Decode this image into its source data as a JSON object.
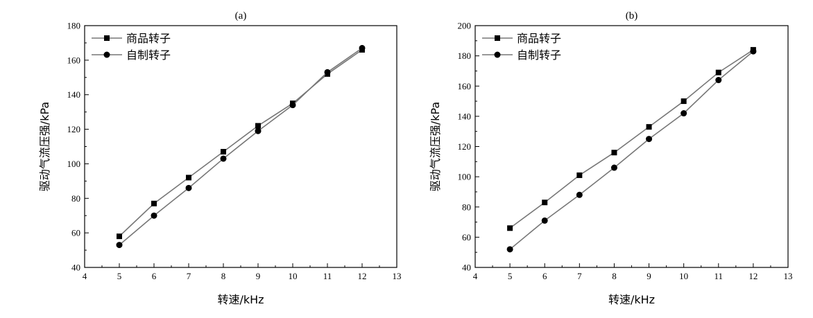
{
  "chart_data": [
    {
      "type": "line",
      "title": "(a)",
      "xlabel": "转速/kHz",
      "ylabel": "驱动气流压强/kPa",
      "xlim": [
        4,
        13
      ],
      "ylim": [
        40,
        180
      ],
      "xticks": [
        4,
        5,
        6,
        7,
        8,
        9,
        10,
        11,
        12,
        13
      ],
      "yticks": [
        40,
        60,
        80,
        100,
        120,
        140,
        160,
        180
      ],
      "legend_position": "top-left",
      "grid": false,
      "x": [
        5,
        6,
        7,
        8,
        9,
        10,
        11,
        12
      ],
      "series": [
        {
          "name": "商品转子",
          "marker": "square",
          "values": [
            58,
            77,
            92,
            107,
            122,
            135,
            152,
            166
          ]
        },
        {
          "name": "自制转子",
          "marker": "circle",
          "values": [
            53,
            70,
            86,
            103,
            119,
            134,
            153,
            167
          ]
        }
      ]
    },
    {
      "type": "line",
      "title": "(b)",
      "xlabel": "转速/kHz",
      "ylabel": "驱动气流压强/kPa",
      "xlim": [
        4,
        13
      ],
      "ylim": [
        40,
        200
      ],
      "xticks": [
        4,
        5,
        6,
        7,
        8,
        9,
        10,
        11,
        12,
        13
      ],
      "yticks": [
        40,
        60,
        80,
        100,
        120,
        140,
        160,
        180,
        200
      ],
      "legend_position": "top-left",
      "grid": false,
      "x": [
        5,
        6,
        7,
        8,
        9,
        10,
        11,
        12
      ],
      "series": [
        {
          "name": "商品转子",
          "marker": "square",
          "values": [
            66,
            83,
            101,
            116,
            133,
            150,
            169,
            184
          ]
        },
        {
          "name": "自制转子",
          "marker": "circle",
          "values": [
            52,
            71,
            88,
            106,
            125,
            142,
            164,
            183
          ]
        }
      ]
    }
  ],
  "colors": {
    "line": "#777777",
    "marker": "#000000",
    "axis": "#000000"
  }
}
